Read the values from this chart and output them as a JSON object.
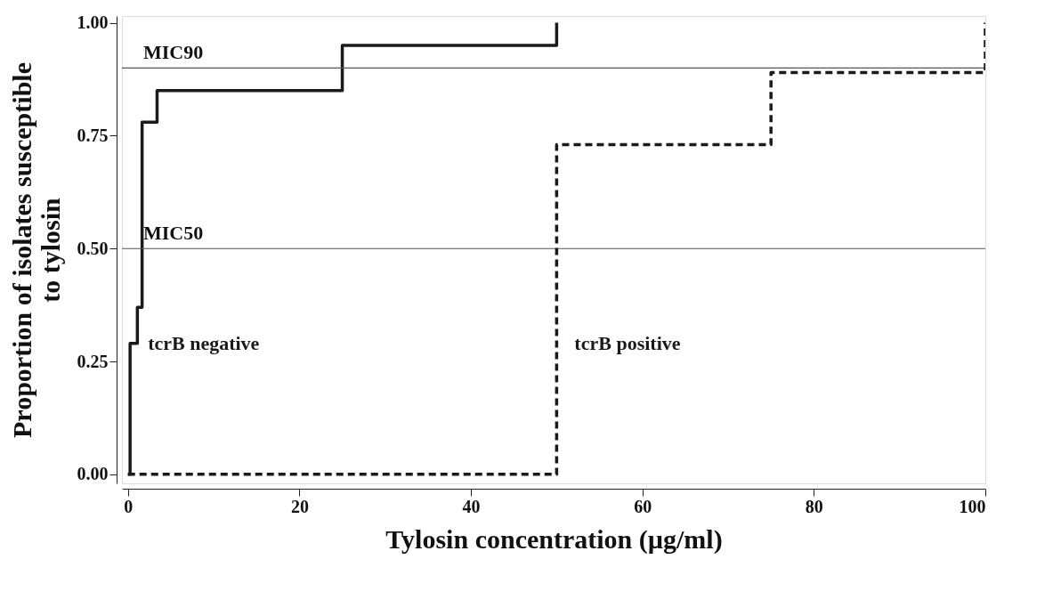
{
  "chart_data": {
    "type": "step",
    "xlabel": "Tylosin concentration (µg/ml)",
    "ylabel": "Proportion of isolates susceptible to tylosin",
    "xlim": [
      -0.7,
      100
    ],
    "ylim": [
      -0.02,
      1.015
    ],
    "xticks": [
      0,
      20,
      40,
      60,
      80,
      100
    ],
    "yticks": [
      {
        "value": 0,
        "label": "0.00"
      },
      {
        "value": 0.25,
        "label": "0.25"
      },
      {
        "value": 0.5,
        "label": "0.50"
      },
      {
        "value": 0.75,
        "label": "0.75"
      },
      {
        "value": 1,
        "label": "1.00"
      }
    ],
    "grid": false,
    "series": [
      {
        "name": "tcrB negative",
        "color": "#1a1a1a",
        "line_style": "solid",
        "x": [
          0,
          0.25,
          1.1,
          1.65,
          3.4,
          25,
          50
        ],
        "values": [
          0,
          0.29,
          0.37,
          0.78,
          0.85,
          0.95,
          1.0
        ]
      },
      {
        "name": "tcrB positive",
        "color": "#1a1a1a",
        "line_style": "dashed",
        "x": [
          0,
          50,
          75,
          100
        ],
        "values": [
          0,
          0.73,
          0.89,
          1.0
        ]
      }
    ],
    "ref_lines": [
      {
        "axis": "y",
        "value": 0.9,
        "label": "MIC90",
        "color": "#555555"
      },
      {
        "axis": "y",
        "value": 0.5,
        "label": "MIC50",
        "color": "#555555"
      }
    ]
  }
}
